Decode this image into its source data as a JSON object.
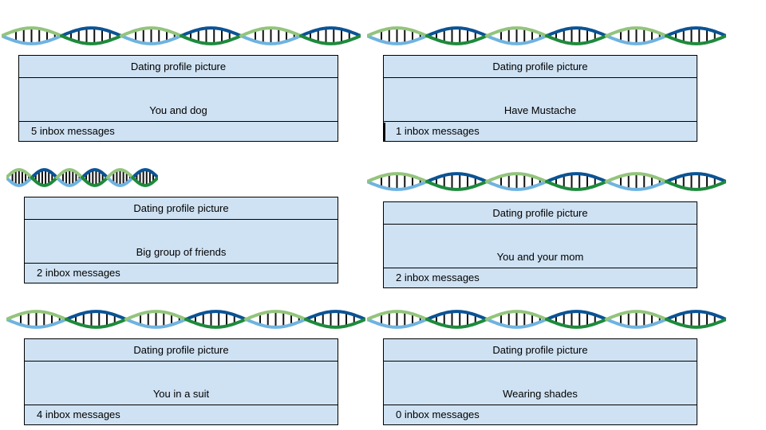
{
  "colors": {
    "card_fill": "#cfe2f3",
    "card_border": "#000000",
    "helix_light_blue": "#6fb3e0",
    "helix_dark_blue": "#0b5394",
    "helix_green_dark": "#1e8a3c",
    "helix_green_light": "#93c47d"
  },
  "icons": [
    "dna-helix-icon"
  ],
  "profiles": [
    {
      "header": "Dating profile picture",
      "photo": "You and dog",
      "messages": "5 inbox messages"
    },
    {
      "header": "Dating profile picture",
      "photo": "Have Mustache",
      "messages": "1 inbox messages"
    },
    {
      "header": "Dating profile picture",
      "photo": "Big group of friends",
      "messages": "2 inbox messages"
    },
    {
      "header": "Dating profile picture",
      "photo": "You and your mom",
      "messages": "2 inbox messages"
    },
    {
      "header": "Dating profile picture",
      "photo": "You in a suit",
      "messages": "4 inbox messages"
    },
    {
      "header": "Dating profile picture",
      "photo": "Wearing shades",
      "messages": "0 inbox messages"
    }
  ]
}
